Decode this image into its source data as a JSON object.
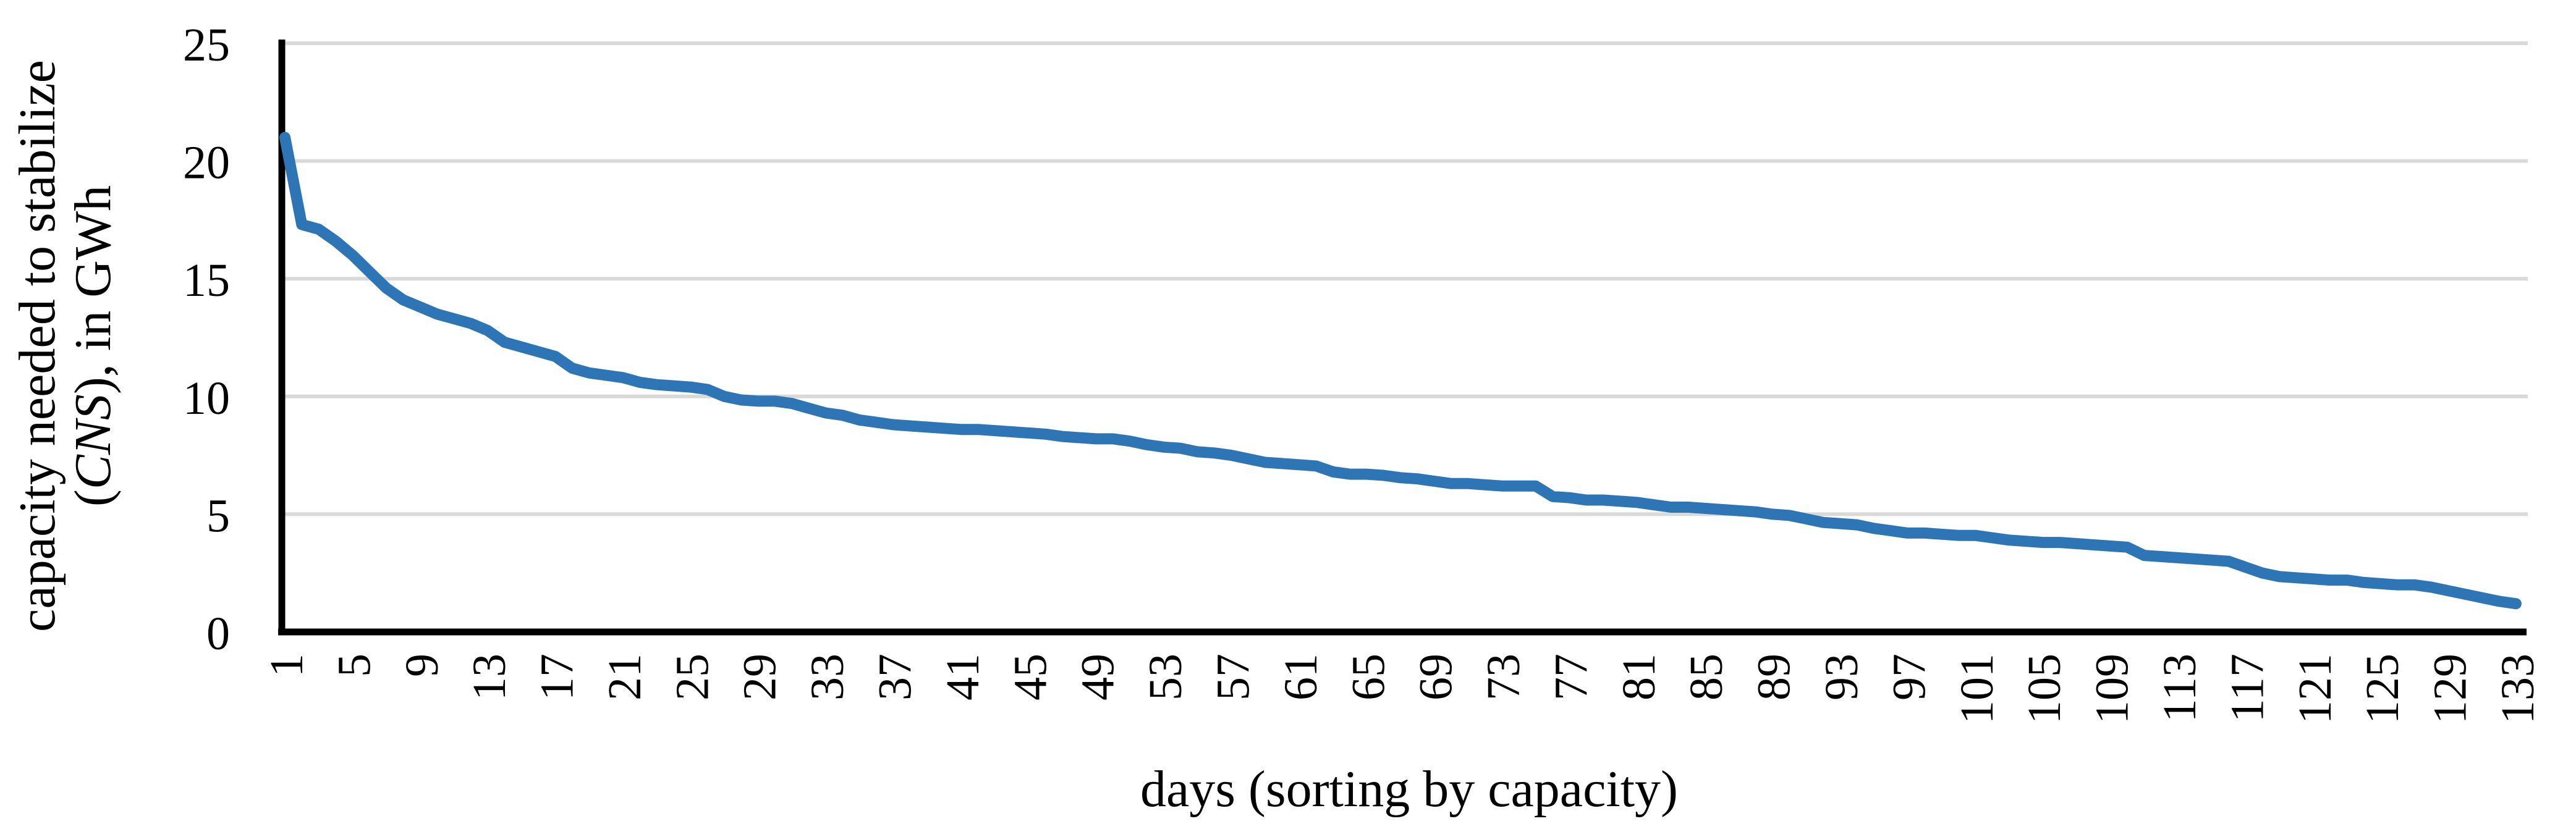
{
  "figure": {
    "x_axis_title": "days (sorting by capacity)",
    "y_axis_title_line1": "capacity needed to stabilize",
    "y_axis_title_line2_prefix": "(",
    "y_axis_title_line2_italic": "CNS",
    "y_axis_title_line2_suffix": "), in GWh"
  },
  "style": {
    "line_color": "#2E75B6",
    "grid_color": "#D9D9D9",
    "axis_color": "#000000",
    "background": "#FFFFFF",
    "text_color": "#000000"
  },
  "chart_data": {
    "type": "line",
    "title": "",
    "xlabel": "days (sorting by capacity)",
    "ylabel": "capacity needed to stabilize (CNS), in GWh",
    "xlim": [
      1,
      133
    ],
    "ylim": [
      0,
      25
    ],
    "y_ticks": [
      0,
      5,
      10,
      15,
      20,
      25
    ],
    "x_tick_labels": [
      "1",
      "5",
      "9",
      "13",
      "17",
      "21",
      "25",
      "29",
      "33",
      "37",
      "41",
      "45",
      "49",
      "53",
      "57",
      "61",
      "65",
      "69",
      "73",
      "77",
      "81",
      "85",
      "89",
      "93",
      "97",
      "101",
      "105",
      "109",
      "113",
      "117",
      "121",
      "125",
      "129",
      "133"
    ],
    "x_tick_step": 4,
    "grid": "horizontal",
    "legend": "none",
    "x": "days 1 through 133",
    "series": [
      {
        "name": "CNS",
        "color": "#2E75B6",
        "values": [
          21.0,
          17.3,
          17.1,
          16.6,
          16.0,
          15.3,
          14.6,
          14.1,
          13.8,
          13.5,
          13.3,
          13.1,
          12.8,
          12.3,
          12.1,
          11.9,
          11.7,
          11.2,
          11.0,
          10.9,
          10.8,
          10.6,
          10.5,
          10.45,
          10.4,
          10.3,
          10.0,
          9.85,
          9.8,
          9.8,
          9.7,
          9.5,
          9.3,
          9.2,
          9.0,
          8.9,
          8.8,
          8.75,
          8.7,
          8.65,
          8.6,
          8.6,
          8.55,
          8.5,
          8.45,
          8.4,
          8.3,
          8.25,
          8.2,
          8.2,
          8.1,
          7.95,
          7.85,
          7.8,
          7.65,
          7.6,
          7.5,
          7.35,
          7.2,
          7.15,
          7.1,
          7.05,
          6.8,
          6.7,
          6.7,
          6.65,
          6.55,
          6.5,
          6.4,
          6.3,
          6.3,
          6.25,
          6.2,
          6.2,
          6.2,
          5.75,
          5.7,
          5.6,
          5.6,
          5.55,
          5.5,
          5.4,
          5.3,
          5.3,
          5.25,
          5.2,
          5.15,
          5.1,
          5.0,
          4.95,
          4.8,
          4.65,
          4.6,
          4.55,
          4.4,
          4.3,
          4.2,
          4.2,
          4.15,
          4.1,
          4.1,
          4.0,
          3.9,
          3.85,
          3.8,
          3.8,
          3.75,
          3.7,
          3.65,
          3.6,
          3.25,
          3.2,
          3.15,
          3.1,
          3.05,
          3.0,
          2.75,
          2.5,
          2.35,
          2.3,
          2.25,
          2.2,
          2.2,
          2.1,
          2.05,
          2.0,
          2.0,
          1.9,
          1.75,
          1.6,
          1.45,
          1.3,
          1.2
        ]
      }
    ]
  }
}
